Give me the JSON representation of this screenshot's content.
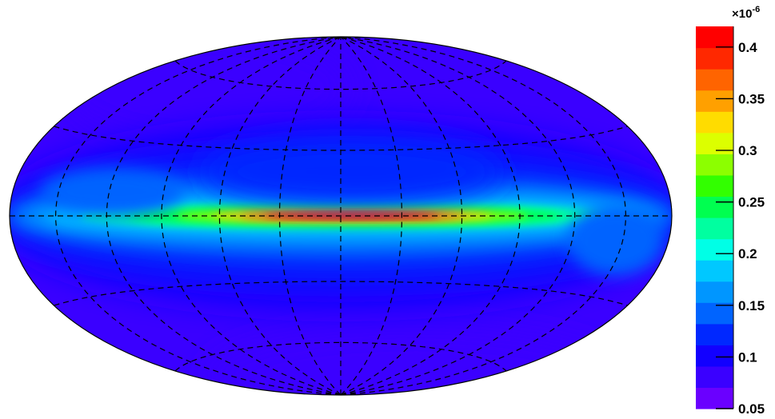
{
  "chart_data": {
    "type": "heatmap",
    "projection": "aitoff-hammer",
    "title": "",
    "xlabel": "",
    "ylabel": "",
    "grid": true,
    "colorbar": {
      "exponent_label": "×10",
      "exponent_power": "-6",
      "range": [
        0.05,
        0.42
      ],
      "ticks": [
        {
          "value": 0.05,
          "label": "0.05"
        },
        {
          "value": 0.1,
          "label": "0.1"
        },
        {
          "value": 0.15,
          "label": "0.15"
        },
        {
          "value": 0.2,
          "label": "0.2"
        },
        {
          "value": 0.25,
          "label": "0.25"
        },
        {
          "value": 0.3,
          "label": "0.3"
        },
        {
          "value": 0.35,
          "label": "0.35"
        },
        {
          "value": 0.4,
          "label": "0.4"
        }
      ],
      "colors": [
        "#6a00ff",
        "#3a00ff",
        "#1200ff",
        "#0028ff",
        "#0064ff",
        "#0096ff",
        "#00c8ff",
        "#00ffe6",
        "#00ffa0",
        "#00ff50",
        "#32ff00",
        "#8cff00",
        "#dcff00",
        "#ffdc00",
        "#ffa000",
        "#ff6400",
        "#ff2800",
        "#ff0000"
      ]
    },
    "feature": "bright band along central plane peaking near longitude 0",
    "peak_value": 0.42,
    "background_value": 0.09
  }
}
